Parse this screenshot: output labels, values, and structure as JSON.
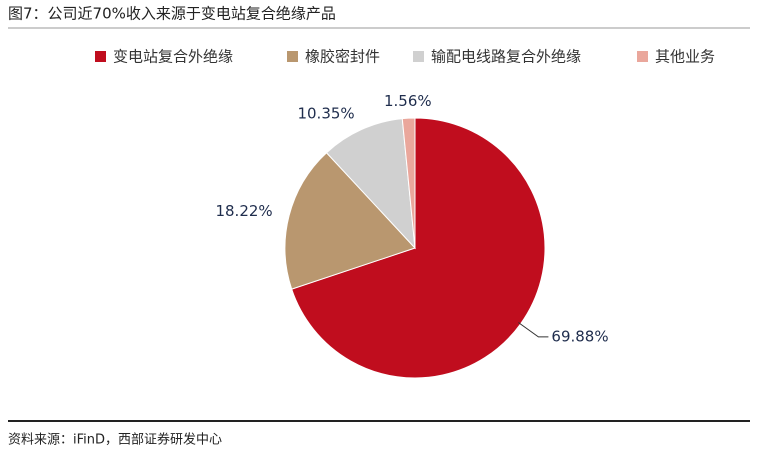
{
  "chart_data": {
    "type": "pie",
    "title": "图7：公司近70%收入来源于变电站复合绝缘产品",
    "source": "资料来源：iFinD，西部证券研发中心",
    "categories": [
      "变电站复合外绝缘",
      "橡胶密封件",
      "输配电线路复合外绝缘",
      "其他业务"
    ],
    "values": [
      69.88,
      18.22,
      10.35,
      1.56
    ],
    "value_labels": [
      "69.88%",
      "18.22%",
      "10.35%",
      "1.56%"
    ],
    "colors": [
      "#c00d1e",
      "#b9976f",
      "#d0d0d0",
      "#eaa79c"
    ],
    "legend": "top"
  }
}
